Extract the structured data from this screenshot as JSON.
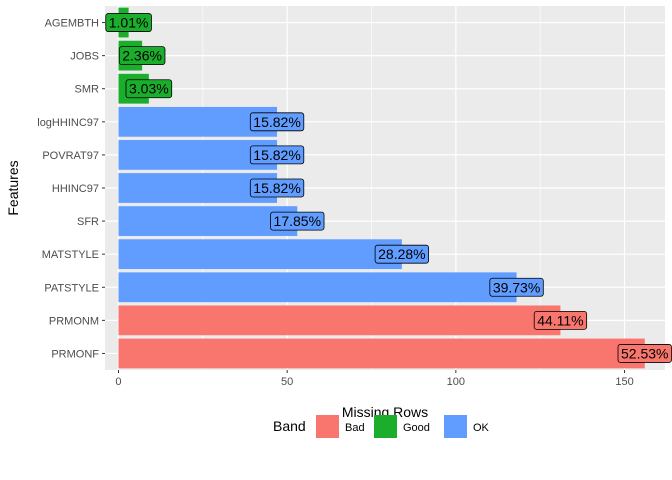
{
  "chart_data": {
    "type": "bar",
    "orientation": "horizontal",
    "xlabel": "Missing Rows",
    "ylabel": "Features",
    "xlim": [
      -4,
      162
    ],
    "x_ticks": [
      0,
      50,
      100,
      150
    ],
    "grid": true,
    "legend": {
      "title": "Band",
      "placement": "bottom",
      "entries": [
        {
          "name": "Bad",
          "color": "#F8766D"
        },
        {
          "name": "Good",
          "color": "#1BAE2C"
        },
        {
          "name": "OK",
          "color": "#619CFF"
        }
      ]
    },
    "bars": [
      {
        "feature": "AGEMBTH",
        "value": 3,
        "label": "1.01%",
        "band": "Good"
      },
      {
        "feature": "JOBS",
        "value": 7,
        "label": "2.36%",
        "band": "Good"
      },
      {
        "feature": "SMR",
        "value": 9,
        "label": "3.03%",
        "band": "Good"
      },
      {
        "feature": "logHHINC97",
        "value": 47,
        "label": "15.82%",
        "band": "OK"
      },
      {
        "feature": "POVRAT97",
        "value": 47,
        "label": "15.82%",
        "band": "OK"
      },
      {
        "feature": "HHINC97",
        "value": 47,
        "label": "15.82%",
        "band": "OK"
      },
      {
        "feature": "SFR",
        "value": 53,
        "label": "17.85%",
        "band": "OK"
      },
      {
        "feature": "MATSTYLE",
        "value": 84,
        "label": "28.28%",
        "band": "OK"
      },
      {
        "feature": "PATSTYLE",
        "value": 118,
        "label": "39.73%",
        "band": "OK"
      },
      {
        "feature": "PRMONM",
        "value": 131,
        "label": "44.11%",
        "band": "Bad"
      },
      {
        "feature": "PRMONF",
        "value": 156,
        "label": "52.53%",
        "band": "Bad"
      }
    ]
  }
}
